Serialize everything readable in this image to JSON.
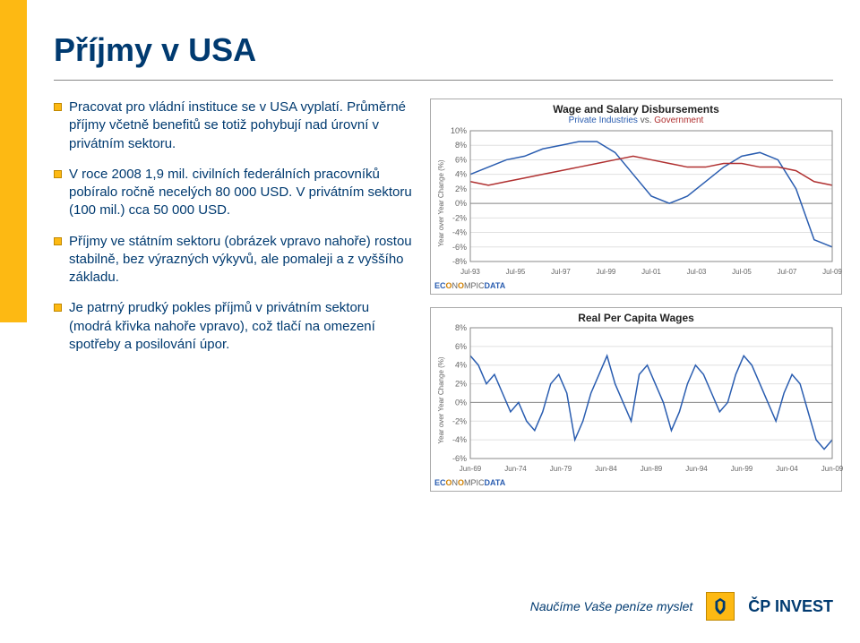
{
  "title": "Příjmy v USA",
  "bullets": [
    "Pracovat pro vládní instituce se v USA vyplatí. Průměrné příjmy včetně benefitů se totiž pohybují nad úrovní v privátním sektoru.",
    "V roce 2008 1,9 mil. civilních federálních pracovníků pobíralo ročně necelých 80 000 USD. V privátním sektoru (100 mil.) cca 50 000 USD.",
    "Příjmy ve státním sektoru (obrázek vpravo nahoře) rostou stabilně, bez výrazných výkyvů, ale pomaleji a z vyššího základu.",
    "Je patrný prudký pokles příjmů v privátním sektoru (modrá křivka nahoře vpravo), což tlačí na omezení spotřeby a posilování úpor."
  ],
  "chart1": {
    "title": "Wage and Salary Disbursements",
    "subtitle_left": "Private Industries",
    "subtitle_vs": "vs.",
    "subtitle_right": "Government",
    "ylabel": "Year over Year Change (%)",
    "y_ticks": [
      "10%",
      "8%",
      "6%",
      "4%",
      "2%",
      "0%",
      "-2%",
      "-4%",
      "-6%",
      "-8%"
    ],
    "y_values": [
      10,
      8,
      6,
      4,
      2,
      0,
      -2,
      -4,
      -6,
      -8
    ],
    "y_min": -8,
    "y_max": 10,
    "x_ticks": [
      "Jul-93",
      "Jul-95",
      "Jul-97",
      "Jul-99",
      "Jul-01",
      "Jul-03",
      "Jul-05",
      "Jul-07",
      "Jul-09"
    ],
    "plot_bg": "#ffffff",
    "grid_color": "#e0e0e0",
    "series": {
      "private": {
        "color": "#2a5db0",
        "y": [
          4,
          5,
          6,
          6.5,
          7.5,
          8,
          8.5,
          8.5,
          7,
          4,
          1,
          0,
          1,
          3,
          5,
          6.5,
          7,
          6,
          2,
          -5,
          -6
        ]
      },
      "government": {
        "color": "#b03030",
        "y": [
          3,
          2.5,
          3,
          3.5,
          4,
          4.5,
          5,
          5.5,
          6,
          6.5,
          6,
          5.5,
          5,
          5,
          5.5,
          5.5,
          5,
          5,
          4.5,
          3,
          2.5
        ]
      }
    },
    "source": "ECONOMPICDATA"
  },
  "chart2": {
    "title": "Real Per Capita Wages",
    "ylabel": "Year over Year Change (%)",
    "y_ticks": [
      "8%",
      "6%",
      "4%",
      "2%",
      "0%",
      "-2%",
      "-4%",
      "-6%"
    ],
    "y_values": [
      8,
      6,
      4,
      2,
      0,
      -2,
      -4,
      -6
    ],
    "y_min": -6,
    "y_max": 8,
    "x_ticks": [
      "Jun-69",
      "Jun-74",
      "Jun-79",
      "Jun-84",
      "Jun-89",
      "Jun-94",
      "Jun-99",
      "Jun-04",
      "Jun-09"
    ],
    "plot_bg": "#ffffff",
    "grid_color": "#e0e0e0",
    "series": {
      "line": {
        "color": "#2a5db0",
        "y": [
          5,
          4,
          2,
          3,
          1,
          -1,
          0,
          -2,
          -3,
          -1,
          2,
          3,
          1,
          -4,
          -2,
          1,
          3,
          5,
          2,
          0,
          -2,
          3,
          4,
          2,
          0,
          -3,
          -1,
          2,
          4,
          3,
          1,
          -1,
          0,
          3,
          5,
          4,
          2,
          0,
          -2,
          1,
          3,
          2,
          -1,
          -4,
          -5,
          -4
        ]
      }
    },
    "source": "ECONOMPICDATA"
  },
  "footer": {
    "tagline": "Naučíme Vaše peníze myslet",
    "brand": "ČP INVEST"
  }
}
